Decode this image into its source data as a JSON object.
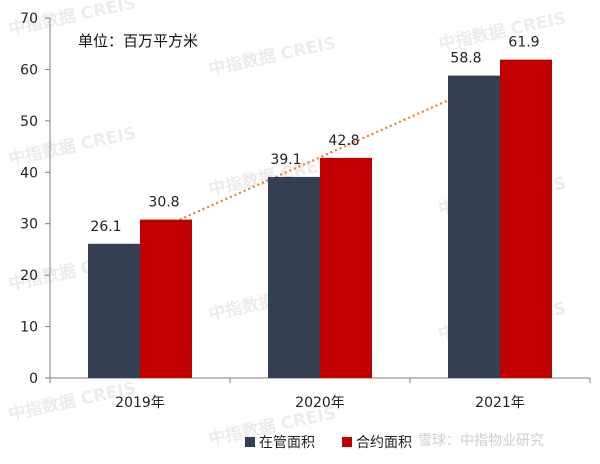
{
  "chart_data": {
    "type": "bar",
    "categories": [
      "2019年",
      "2020年",
      "2021年"
    ],
    "series": [
      {
        "name": "在管面积",
        "color": "#343f54",
        "values": [
          26.1,
          39.1,
          58.8
        ]
      },
      {
        "name": "合约面积",
        "color": "#c00000",
        "values": [
          30.8,
          42.8,
          61.9
        ]
      }
    ],
    "trendline": {
      "series": "合约面积",
      "style": "dotted",
      "color": "#ed7d31"
    },
    "ylim": [
      0,
      70
    ],
    "yticks": [
      0,
      10,
      20,
      30,
      40,
      50,
      60,
      70
    ],
    "unit_label": "单位：百万平方米",
    "legend_position": "bottom",
    "grid": false
  },
  "watermark": "中指数据 CREIS",
  "source": "雪球：中指物业研究"
}
